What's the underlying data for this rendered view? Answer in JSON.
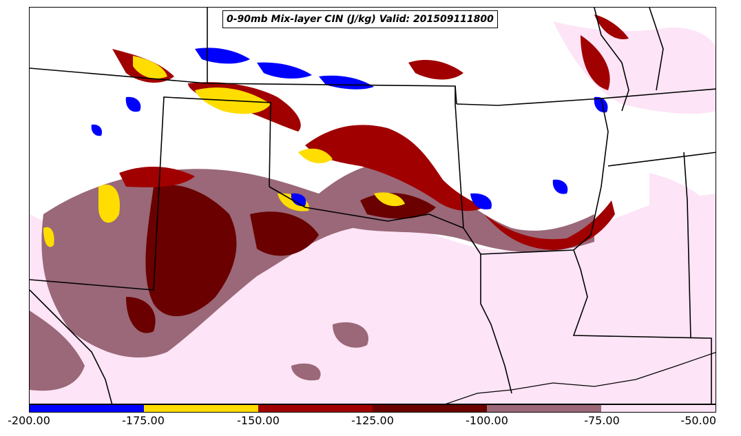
{
  "title": "0-90mb Mix-layer CIN (J/kg) Valid: 201509111800",
  "colorbar": {
    "ticks": [
      "-200.00",
      "-175.00",
      "-150.00",
      "-125.00",
      "-100.00",
      "-75.00",
      "-50.00"
    ],
    "bins": [
      {
        "range": "-200 to -175",
        "color": "#0000ff"
      },
      {
        "range": "-175 to -150",
        "color": "#ffdd00"
      },
      {
        "range": "-150 to -125",
        "color": "#a00000"
      },
      {
        "range": "-125 to -100",
        "color": "#6a0000"
      },
      {
        "range": "-100 to -75",
        "color": "#9a6878"
      },
      {
        "range": "-75 to -50",
        "color": "#fde4f6"
      }
    ]
  }
}
